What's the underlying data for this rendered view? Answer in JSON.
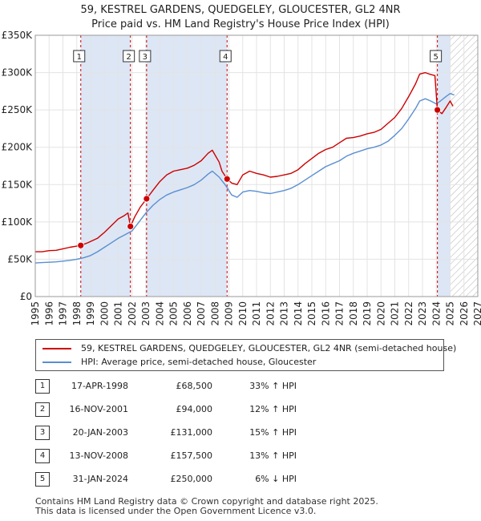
{
  "chart_data": {
    "type": "line",
    "title": "59, KESTREL GARDENS, QUEDGELEY, GLOUCESTER, GL2 4NR",
    "subtitle": "Price paid vs. HM Land Registry's House Price Index (HPI)",
    "xlabel": "",
    "ylabel": "",
    "xlim": [
      1995,
      2027
    ],
    "ylim": [
      0,
      350000
    ],
    "x_ticks": [
      "1995",
      "1996",
      "1997",
      "1998",
      "1999",
      "2000",
      "2001",
      "2002",
      "2003",
      "2004",
      "2005",
      "2006",
      "2007",
      "2008",
      "2009",
      "2010",
      "2011",
      "2012",
      "2013",
      "2014",
      "2015",
      "2016",
      "2017",
      "2018",
      "2019",
      "2020",
      "2021",
      "2022",
      "2023",
      "2024",
      "2025",
      "2026",
      "2027"
    ],
    "y_ticks": [
      {
        "value": 0,
        "label": "£0"
      },
      {
        "value": 50000,
        "label": "£50K"
      },
      {
        "value": 100000,
        "label": "£100K"
      },
      {
        "value": 150000,
        "label": "£150K"
      },
      {
        "value": 200000,
        "label": "£200K"
      },
      {
        "value": 250000,
        "label": "£250K"
      },
      {
        "value": 300000,
        "label": "£300K"
      },
      {
        "value": 350000,
        "label": "£350K"
      }
    ],
    "grid": true,
    "forecast_start": 2025.0,
    "series": [
      {
        "name": "59, KESTREL GARDENS, QUEDGELEY, GLOUCESTER, GL2 4NR (semi-detached house)",
        "color": "#cc0000",
        "x": [
          1995.0,
          1995.5,
          1996.0,
          1996.5,
          1997.0,
          1997.5,
          1998.0,
          1998.29,
          1998.8,
          1999.5,
          2000.0,
          2000.5,
          2001.0,
          2001.4,
          2001.7,
          2001.88,
          2002.2,
          2002.6,
          2003.05,
          2003.5,
          2004.0,
          2004.5,
          2005.0,
          2005.5,
          2006.0,
          2006.5,
          2007.0,
          2007.5,
          2007.8,
          2008.3,
          2008.5,
          2008.87,
          2009.2,
          2009.6,
          2010.0,
          2010.5,
          2011.0,
          2011.5,
          2012.0,
          2012.5,
          2013.0,
          2013.5,
          2014.0,
          2014.5,
          2015.0,
          2015.5,
          2016.0,
          2016.5,
          2017.0,
          2017.5,
          2018.0,
          2018.5,
          2019.0,
          2019.5,
          2020.0,
          2020.5,
          2021.0,
          2021.5,
          2022.0,
          2022.5,
          2022.8,
          2023.2,
          2023.5,
          2023.9,
          2024.08,
          2024.4,
          2024.7,
          2025.0,
          2025.2
        ],
        "values": [
          60000,
          60000,
          61500,
          62000,
          64000,
          66000,
          67500,
          68500,
          72000,
          78000,
          86000,
          95000,
          104000,
          108000,
          112000,
          94000,
          107000,
          120000,
          131000,
          142000,
          154000,
          163000,
          168000,
          170000,
          172000,
          176000,
          182000,
          192000,
          196000,
          180000,
          168000,
          157500,
          152000,
          150000,
          163000,
          168000,
          165000,
          163000,
          160000,
          161000,
          163000,
          165000,
          170000,
          178000,
          185000,
          192000,
          197000,
          200000,
          206000,
          212000,
          213000,
          215000,
          218000,
          220000,
          224000,
          232000,
          240000,
          252000,
          268000,
          285000,
          298000,
          300000,
          298000,
          296000,
          250000,
          245000,
          253000,
          262000,
          255000
        ]
      },
      {
        "name": "HPI: Average price, semi-detached house, Gloucester",
        "color": "#5a8fd0",
        "x": [
          1995.0,
          1995.5,
          1996.0,
          1996.5,
          1997.0,
          1997.5,
          1998.0,
          1998.5,
          1999.0,
          1999.5,
          2000.0,
          2000.5,
          2001.0,
          2001.5,
          2002.0,
          2002.5,
          2003.0,
          2003.5,
          2004.0,
          2004.5,
          2005.0,
          2005.5,
          2006.0,
          2006.5,
          2007.0,
          2007.5,
          2007.8,
          2008.3,
          2008.8,
          2009.2,
          2009.6,
          2010.0,
          2010.5,
          2011.0,
          2011.5,
          2012.0,
          2012.5,
          2013.0,
          2013.5,
          2014.0,
          2014.5,
          2015.0,
          2015.5,
          2016.0,
          2016.5,
          2017.0,
          2017.5,
          2018.0,
          2018.5,
          2019.0,
          2019.5,
          2020.0,
          2020.5,
          2021.0,
          2021.5,
          2022.0,
          2022.5,
          2022.8,
          2023.2,
          2023.6,
          2024.0,
          2024.3,
          2024.7,
          2025.0,
          2025.3
        ],
        "values": [
          45000,
          45500,
          46000,
          46500,
          47500,
          48500,
          50000,
          52000,
          55000,
          60000,
          66000,
          72000,
          78000,
          83000,
          88000,
          100000,
          112000,
          122000,
          130000,
          136000,
          140000,
          143000,
          146000,
          150000,
          156000,
          164000,
          168000,
          160000,
          148000,
          136000,
          133000,
          140000,
          142000,
          141000,
          139000,
          138000,
          140000,
          142000,
          145000,
          150000,
          156000,
          162000,
          168000,
          174000,
          178000,
          182000,
          188000,
          192000,
          195000,
          198000,
          200000,
          203000,
          208000,
          216000,
          225000,
          238000,
          252000,
          262000,
          265000,
          262000,
          258000,
          262000,
          268000,
          272000,
          270000
        ]
      }
    ],
    "sales": [
      {
        "label": "1",
        "x": 1998.29,
        "value": 68500
      },
      {
        "label": "2",
        "x": 2001.88,
        "value": 94000
      },
      {
        "label": "3",
        "x": 2003.05,
        "value": 131000
      },
      {
        "label": "4",
        "x": 2008.87,
        "value": 157500
      },
      {
        "label": "5",
        "x": 2024.08,
        "value": 250000
      }
    ],
    "shaded_periods": [
      [
        1998.29,
        2001.88
      ],
      [
        2003.05,
        2008.87
      ],
      [
        2024.08,
        2025.0
      ]
    ]
  },
  "legend": {
    "property_label": "59, KESTREL GARDENS, QUEDGELEY, GLOUCESTER, GL2 4NR (semi-detached house)",
    "hpi_label": "HPI: Average price, semi-detached house, Gloucester"
  },
  "transactions": [
    {
      "num": "1",
      "date": "17-APR-1998",
      "price": "£68,500",
      "hpi": "33% ↑ HPI"
    },
    {
      "num": "2",
      "date": "16-NOV-2001",
      "price": "£94,000",
      "hpi": "12% ↑ HPI"
    },
    {
      "num": "3",
      "date": "20-JAN-2003",
      "price": "£131,000",
      "hpi": "15% ↑ HPI"
    },
    {
      "num": "4",
      "date": "13-NOV-2008",
      "price": "£157,500",
      "hpi": "13% ↑ HPI"
    },
    {
      "num": "5",
      "date": "31-JAN-2024",
      "price": "£250,000",
      "hpi": "6% ↓ HPI"
    }
  ],
  "footer": {
    "line1": "Contains HM Land Registry data © Crown copyright and database right 2025.",
    "line2": "This data is licensed under the Open Government Licence v3.0."
  },
  "colors": {
    "property": "#cc0000",
    "hpi": "#5a8fd0",
    "shade": "#dde6f5",
    "grid": "#e3e3e3",
    "marker_line": "#cc0000"
  }
}
